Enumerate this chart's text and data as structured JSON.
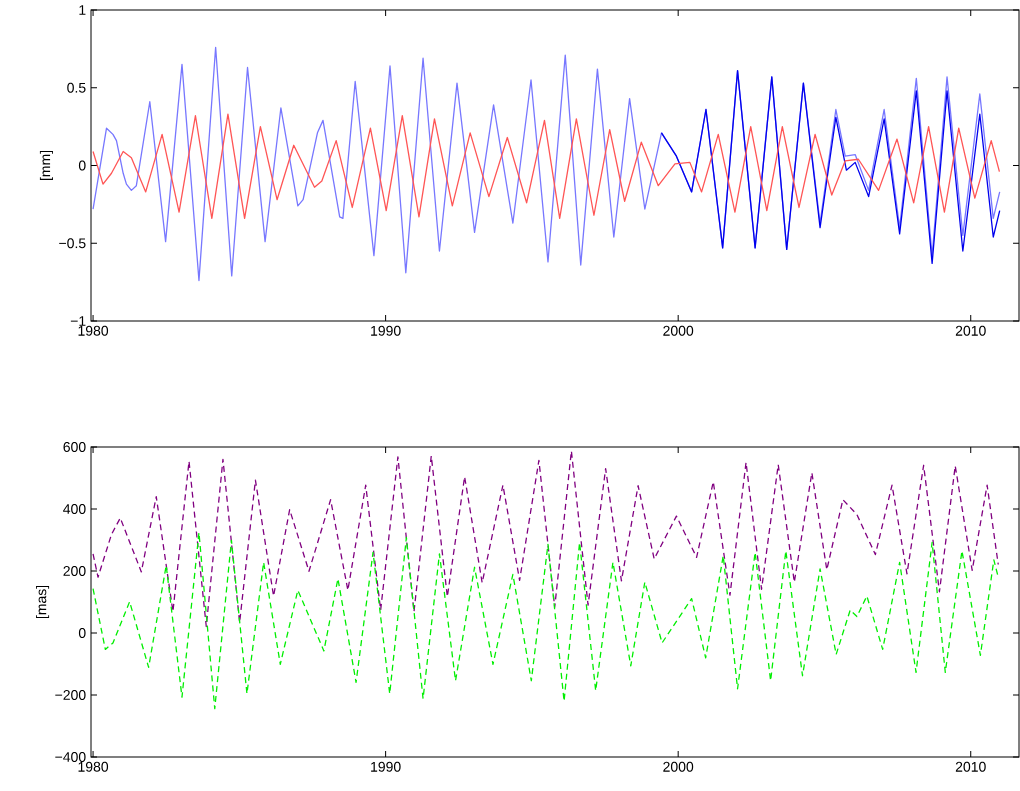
{
  "chart_data": [
    {
      "type": "line",
      "ylabel": "[mm]",
      "xlim": [
        1979.93,
        2011.65
      ],
      "ylim": [
        -1,
        1
      ],
      "xticks": [
        1980,
        1990,
        2000,
        2010
      ],
      "yticks": [
        {
          "value": -1,
          "label": "−1"
        },
        {
          "value": -0.5,
          "label": "−0.5"
        },
        0,
        0.5,
        1
      ],
      "series": [
        {
          "color": "#7777ff",
          "line_style": "solid",
          "x": [
            1980.0,
            1980.46,
            1980.68,
            1980.8,
            1981.03,
            1981.14,
            1981.31,
            1981.48,
            1981.94,
            1982.48,
            1983.04,
            1983.62,
            1984.19,
            1984.74,
            1985.28,
            1985.88,
            1986.42,
            1987.0,
            1987.18,
            1987.67,
            1987.86,
            1988.43,
            1988.54,
            1988.96,
            1989.6,
            1990.15,
            1990.69,
            1991.28,
            1991.84,
            1992.44,
            1993.04,
            1993.69,
            1994.35,
            1994.97,
            1995.55,
            1996.14,
            1996.67,
            1997.24,
            1997.8,
            1998.34,
            1998.86,
            1999.43,
            1999.94,
            2000.46,
            2000.95,
            2001.52,
            2002.03,
            2002.63,
            2003.2,
            2003.71,
            2004.28,
            2004.85,
            2005.39,
            2005.71,
            2006.05,
            2006.51,
            2007.04,
            2007.57,
            2008.14,
            2008.68,
            2009.19,
            2009.73,
            2010.31,
            2010.77,
            2010.99
          ],
          "values": [
            -0.28,
            0.24,
            0.2,
            0.16,
            -0.05,
            -0.12,
            -0.16,
            -0.13,
            0.41,
            -0.49,
            0.65,
            -0.74,
            0.76,
            -0.71,
            0.63,
            -0.49,
            0.37,
            -0.26,
            -0.22,
            0.21,
            0.29,
            -0.33,
            -0.34,
            0.54,
            -0.58,
            0.64,
            -0.69,
            0.69,
            -0.55,
            0.53,
            -0.43,
            0.39,
            -0.37,
            0.55,
            -0.62,
            0.71,
            -0.64,
            0.62,
            -0.46,
            0.43,
            -0.28,
            0.21,
            0.06,
            -0.17,
            0.36,
            -0.53,
            0.61,
            -0.53,
            0.57,
            -0.54,
            0.53,
            -0.37,
            0.36,
            0.06,
            0.07,
            -0.16,
            0.36,
            -0.4,
            0.56,
            -0.58,
            0.57,
            -0.45,
            0.46,
            -0.34,
            -0.17
          ]
        },
        {
          "color": "#0000ee",
          "line_style": "solid",
          "x": [
            1999.43,
            1999.94,
            2000.46,
            2000.95,
            2001.52,
            2002.03,
            2002.63,
            2003.2,
            2003.71,
            2004.28,
            2004.85,
            2005.39,
            2005.75,
            2006.05,
            2006.51,
            2007.04,
            2007.57,
            2008.14,
            2008.68,
            2009.19,
            2009.73,
            2010.31,
            2010.77,
            2010.99
          ],
          "values": [
            0.21,
            0.06,
            -0.17,
            0.36,
            -0.53,
            0.61,
            -0.53,
            0.57,
            -0.54,
            0.53,
            -0.4,
            0.31,
            -0.03,
            0.02,
            -0.2,
            0.3,
            -0.44,
            0.48,
            -0.63,
            0.48,
            -0.55,
            0.33,
            -0.46,
            -0.29
          ]
        },
        {
          "color": "#ff5555",
          "line_style": "solid",
          "x": [
            1980.0,
            1980.34,
            1980.63,
            1981.03,
            1981.31,
            1981.8,
            1982.36,
            1982.94,
            1983.5,
            1984.06,
            1984.61,
            1985.18,
            1985.72,
            1986.29,
            1986.86,
            1987.57,
            1987.82,
            1988.31,
            1988.86,
            1989.48,
            1990.02,
            1990.57,
            1991.14,
            1991.67,
            1992.28,
            1992.89,
            1993.53,
            1994.16,
            1994.82,
            1995.43,
            1995.95,
            1996.52,
            1997.12,
            1997.66,
            1998.17,
            1998.74,
            1999.32,
            1999.89,
            2000.4,
            2000.8,
            2001.37,
            2001.94,
            2002.48,
            2003.03,
            2003.56,
            2004.13,
            2004.68,
            2005.25,
            2005.71,
            2006.16,
            2006.85,
            2007.48,
            2008.05,
            2008.56,
            2009.1,
            2009.59,
            2010.14,
            2010.7,
            2010.98
          ],
          "values": [
            0.09,
            -0.12,
            -0.05,
            0.09,
            0.05,
            -0.17,
            0.2,
            -0.3,
            0.32,
            -0.34,
            0.33,
            -0.34,
            0.25,
            -0.22,
            0.13,
            -0.14,
            -0.1,
            0.16,
            -0.27,
            0.24,
            -0.29,
            0.32,
            -0.33,
            0.3,
            -0.26,
            0.21,
            -0.2,
            0.18,
            -0.24,
            0.29,
            -0.34,
            0.3,
            -0.32,
            0.23,
            -0.23,
            0.15,
            -0.13,
            0.01,
            0.02,
            -0.17,
            0.2,
            -0.3,
            0.25,
            -0.29,
            0.25,
            -0.27,
            0.2,
            -0.19,
            0.03,
            0.04,
            -0.16,
            0.17,
            -0.24,
            0.25,
            -0.3,
            0.24,
            -0.21,
            0.16,
            -0.04
          ]
        }
      ]
    },
    {
      "type": "line",
      "ylabel": "[mas]",
      "xlim": [
        1979.93,
        2011.65
      ],
      "ylim": [
        -400,
        600
      ],
      "xticks": [
        1980,
        1990,
        2000,
        2010
      ],
      "yticks": [
        {
          "value": -400,
          "label": "−400"
        },
        {
          "value": -200,
          "label": "−200"
        },
        0,
        200,
        400,
        600
      ],
      "series": [
        {
          "color": "#800080",
          "line_style": "dashed",
          "x": [
            1980.0,
            1980.17,
            1980.63,
            1980.93,
            1981.65,
            1982.16,
            1982.73,
            1983.28,
            1983.87,
            1984.44,
            1985.01,
            1985.55,
            1986.17,
            1986.72,
            1987.38,
            1988.12,
            1988.71,
            1989.32,
            1989.83,
            1990.42,
            1990.97,
            1991.56,
            1992.11,
            1992.7,
            1993.3,
            1994.01,
            1994.58,
            1995.24,
            1995.78,
            1996.35,
            1996.92,
            1997.52,
            1998.06,
            1998.63,
            1999.18,
            1999.94,
            2000.63,
            2001.2,
            2001.77,
            2002.32,
            2002.85,
            2003.42,
            2003.97,
            2004.57,
            2005.08,
            2005.63,
            2006.11,
            2006.74,
            2007.31,
            2007.82,
            2008.39,
            2008.93,
            2009.47,
            2010.05,
            2010.56,
            2010.94
          ],
          "values": [
            255,
            180,
            318,
            371,
            197,
            440,
            69,
            554,
            21,
            560,
            34,
            493,
            119,
            398,
            199,
            430,
            138,
            477,
            74,
            568,
            69,
            571,
            117,
            504,
            162,
            477,
            170,
            557,
            83,
            587,
            90,
            530,
            168,
            475,
            239,
            377,
            244,
            488,
            122,
            550,
            141,
            543,
            164,
            517,
            204,
            430,
            382,
            253,
            477,
            191,
            541,
            133,
            539,
            202,
            477,
            221
          ]
        },
        {
          "color": "#00ee00",
          "line_style": "dashed",
          "x": [
            1980.0,
            1980.42,
            1980.68,
            1981.25,
            1981.9,
            1982.5,
            1983.04,
            1983.62,
            1984.16,
            1984.73,
            1985.26,
            1985.83,
            1986.4,
            1987.0,
            1987.89,
            1988.37,
            1988.99,
            1989.57,
            1990.14,
            1990.71,
            1991.28,
            1991.84,
            1992.39,
            1993.04,
            1993.67,
            1994.35,
            1994.98,
            1995.55,
            1996.1,
            1996.63,
            1997.18,
            1997.77,
            1998.38,
            1998.86,
            1999.45,
            2000.46,
            2000.94,
            2001.54,
            2002.03,
            2002.63,
            2003.16,
            2003.68,
            2004.25,
            2004.85,
            2005.4,
            2005.88,
            2006.11,
            2006.45,
            2006.99,
            2007.57,
            2008.13,
            2008.68,
            2009.13,
            2009.7,
            2010.33,
            2010.79,
            2010.94
          ],
          "values": [
            143,
            -53,
            -32,
            101,
            -111,
            218,
            -207,
            324,
            -244,
            299,
            -196,
            228,
            -101,
            138,
            -58,
            175,
            -159,
            260,
            -196,
            308,
            -212,
            255,
            -154,
            212,
            -101,
            189,
            -154,
            286,
            -220,
            292,
            -186,
            228,
            -106,
            164,
            -32,
            111,
            -80,
            249,
            -180,
            260,
            -154,
            265,
            -138,
            207,
            -69,
            74,
            53,
            119,
            -53,
            228,
            -127,
            292,
            -127,
            265,
            -72,
            236,
            180
          ]
        }
      ]
    }
  ]
}
